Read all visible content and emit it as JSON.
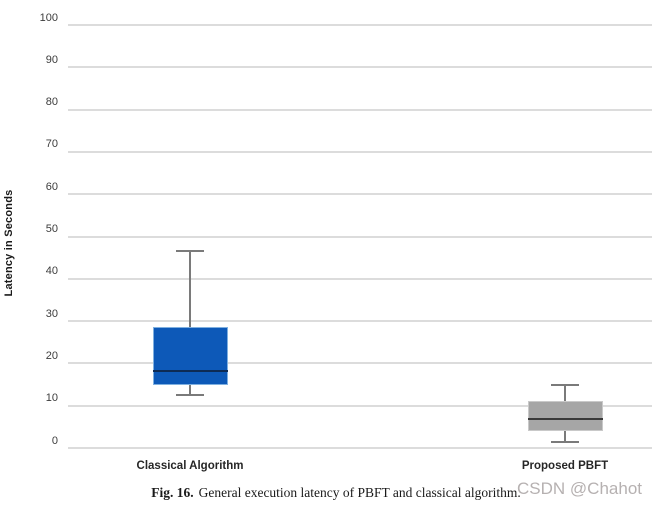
{
  "figure": {
    "caption_label": "Fig. 16.",
    "caption_text": "General execution latency of PBFT and classical algorithm.",
    "watermark": "CSDN @Chahot"
  },
  "colors": {
    "background": "#ffffff",
    "gridline": "#dcdcdc",
    "tick_text": "#3c3c3c",
    "category_text": "#262626",
    "axis_title_text": "#1a1a1a",
    "whisker": "#7a7a7a",
    "watermark_color": "#b6b1b1"
  },
  "chart_data": {
    "type": "boxplot",
    "title": "",
    "xlabel": "",
    "ylabel": "Latency in Seconds",
    "ylim": [
      0,
      100
    ],
    "ytick_step": 10,
    "grid": true,
    "legend": false,
    "categories": [
      "Classical Algorithm",
      "Proposed PBFT"
    ],
    "series": [
      {
        "name": "Classical Algorithm",
        "whisker_low": 12.5,
        "q1": 15,
        "median": 18.5,
        "q3": 28.5,
        "whisker_high": 46.5,
        "fill": "#0d59b8",
        "border": "#7fb0e0",
        "median_color": "#0d2b55"
      },
      {
        "name": "Proposed PBFT",
        "whisker_low": 1.5,
        "q1": 4,
        "median": 7,
        "q3": 11,
        "whisker_high": 15,
        "fill": "#a6a6a6",
        "border": "#c9c9c9",
        "median_color": "#3a3a3a"
      }
    ]
  }
}
